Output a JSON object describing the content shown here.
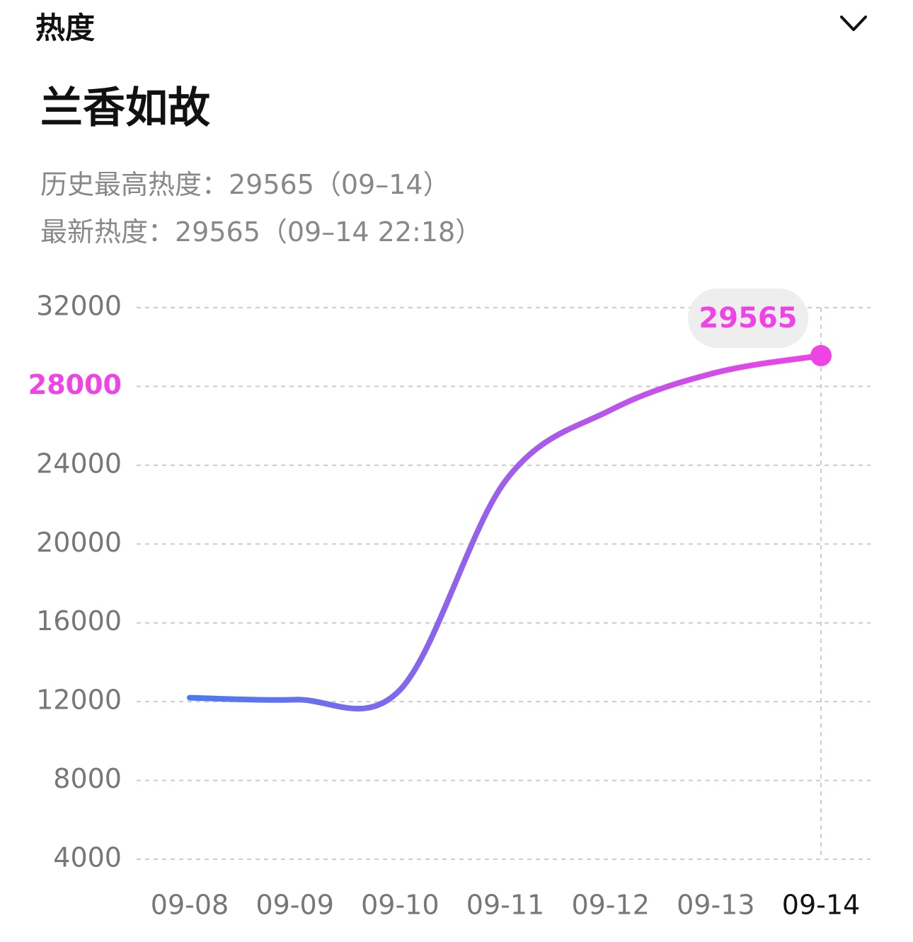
{
  "section": "热度",
  "title": "兰香如故",
  "info": [
    "历史最高热度：29565（09–14）",
    "最新热度：29565（09–14 22:18）"
  ],
  "chart_data": {
    "type": "line",
    "categories": [
      "09-08",
      "09-09",
      "09-10",
      "09-11",
      "09-12",
      "09-13",
      "09-14"
    ],
    "series": [
      {
        "values": [
          12200,
          12100,
          12600,
          23200,
          26800,
          28700,
          29565
        ]
      }
    ],
    "gradient": [
      "#4a7af0",
      "#f043e6"
    ],
    "ylim": [
      4000,
      32000
    ],
    "yticks": [
      4000,
      8000,
      12000,
      16000,
      20000,
      24000,
      28000,
      32000
    ],
    "grid": true
  }
}
